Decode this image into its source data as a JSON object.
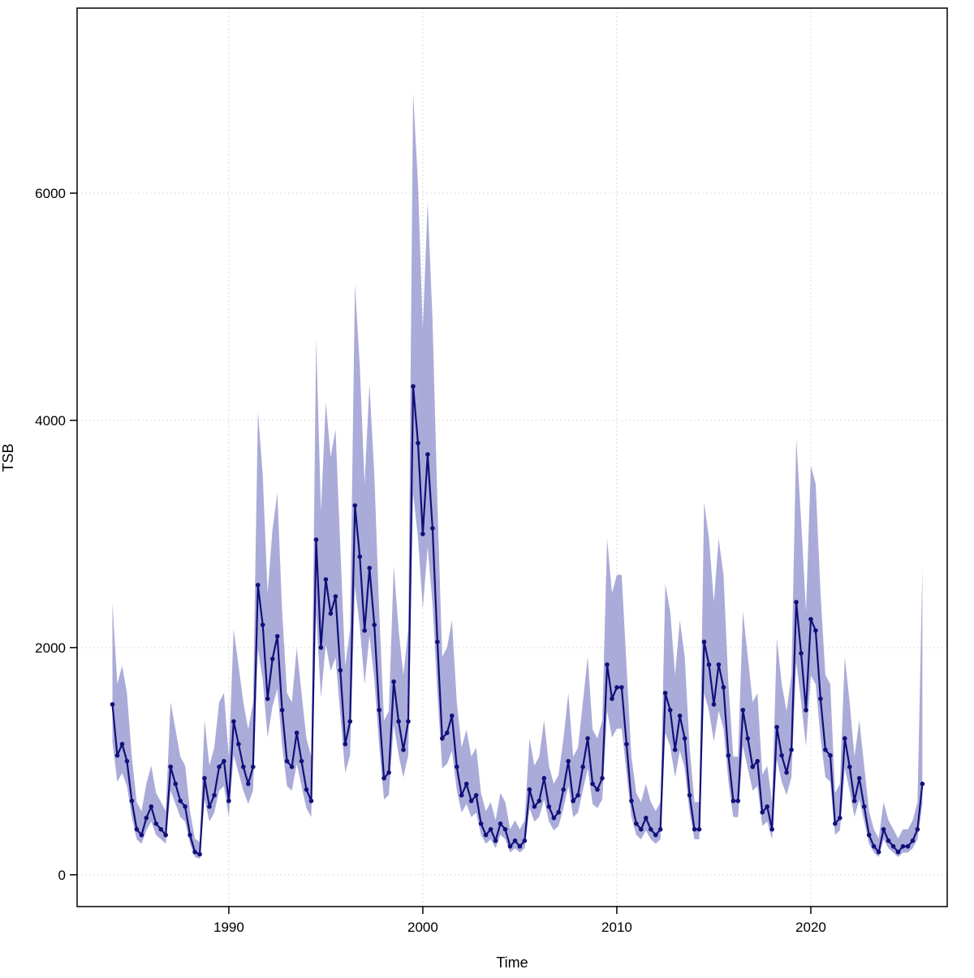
{
  "figure": {
    "background": "#ffffff"
  },
  "chart_data": {
    "type": "line",
    "title": "",
    "xlabel": "Time",
    "ylabel": "TSB",
    "legend": null,
    "grid": "dotted",
    "x_start": 1984.0,
    "x_step": 0.25,
    "x_ticks": [
      1990,
      2000,
      2010,
      2020
    ],
    "y_ticks": [
      0,
      2000,
      4000,
      6000
    ],
    "xlim": [
      1982.18,
      2027.03
    ],
    "ylim": [
      -280,
      7629
    ],
    "line_color": "#10107a",
    "point_color": "#10107a",
    "band_color": "#9c9cd2",
    "grid_color": "#d8d8d8",
    "values": [
      1500,
      1050,
      1150,
      1000,
      650,
      400,
      350,
      500,
      600,
      450,
      400,
      350,
      950,
      800,
      650,
      600,
      350,
      200,
      180,
      850,
      600,
      700,
      950,
      1000,
      650,
      1350,
      1150,
      950,
      800,
      950,
      2550,
      2200,
      1550,
      1900,
      2100,
      1450,
      1000,
      950,
      1250,
      1000,
      750,
      650,
      2950,
      2000,
      2600,
      2300,
      2450,
      1800,
      1150,
      1350,
      3250,
      2800,
      2150,
      2700,
      2200,
      1450,
      850,
      900,
      1700,
      1350,
      1100,
      1350,
      4300,
      3800,
      3000,
      3700,
      3050,
      2050,
      1200,
      1250,
      1400,
      950,
      700,
      800,
      650,
      700,
      450,
      350,
      400,
      300,
      450,
      400,
      250,
      300,
      250,
      300,
      750,
      600,
      650,
      850,
      600,
      500,
      550,
      750,
      1000,
      650,
      700,
      950,
      1200,
      800,
      750,
      850,
      1850,
      1550,
      1650,
      1650,
      1150,
      650,
      450,
      400,
      500,
      400,
      350,
      400,
      1600,
      1450,
      1100,
      1400,
      1200,
      700,
      400,
      400,
      2050,
      1850,
      1500,
      1850,
      1650,
      1050,
      650,
      650,
      1450,
      1200,
      950,
      1000,
      550,
      600,
      400,
      1300,
      1050,
      900,
      1100,
      2400,
      1950,
      1450,
      2250,
      2150,
      1550,
      1100,
      1050,
      450,
      500,
      1200,
      950,
      650,
      850,
      600,
      350,
      250,
      200,
      400,
      300,
      250,
      200,
      250,
      250,
      300,
      400,
      800
    ],
    "band": {
      "lower_factor": 0.78,
      "upper_factor": 1.6,
      "last_upper": 2700
    }
  }
}
